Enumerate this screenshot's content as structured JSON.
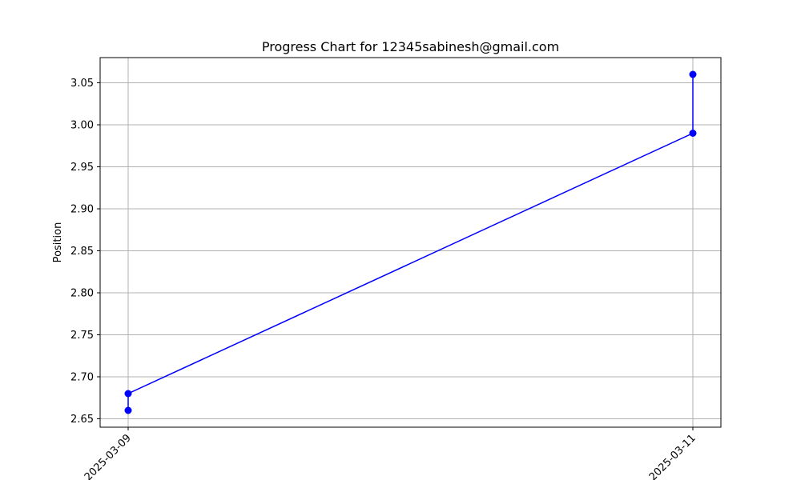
{
  "chart_data": {
    "type": "line",
    "title": "Progress Chart for 12345sabinesh@gmail.com",
    "xlabel": "",
    "ylabel": "Position",
    "x_categories": [
      "2025-03-09",
      "2025-03-11"
    ],
    "series": [
      {
        "color": "#0000ff",
        "marker": "circle",
        "points": [
          {
            "x": "2025-03-09",
            "y": 2.66
          },
          {
            "x": "2025-03-09",
            "y": 2.68
          },
          {
            "x": "2025-03-11",
            "y": 2.99
          },
          {
            "x": "2025-03-11",
            "y": 3.06
          }
        ]
      }
    ],
    "ylim": [
      2.64,
      3.08
    ],
    "yticks": [
      2.65,
      2.7,
      2.75,
      2.8,
      2.85,
      2.9,
      2.95,
      3.0,
      3.05
    ],
    "ytick_labels": [
      "2.65",
      "2.70",
      "2.75",
      "2.80",
      "2.85",
      "2.90",
      "2.95",
      "3.00",
      "3.05"
    ],
    "xtick_labels": [
      "2025-03-09",
      "2025-03-11"
    ],
    "grid": true,
    "grid_color": "#b0b0b0",
    "x_tick_rotation": "45deg"
  }
}
